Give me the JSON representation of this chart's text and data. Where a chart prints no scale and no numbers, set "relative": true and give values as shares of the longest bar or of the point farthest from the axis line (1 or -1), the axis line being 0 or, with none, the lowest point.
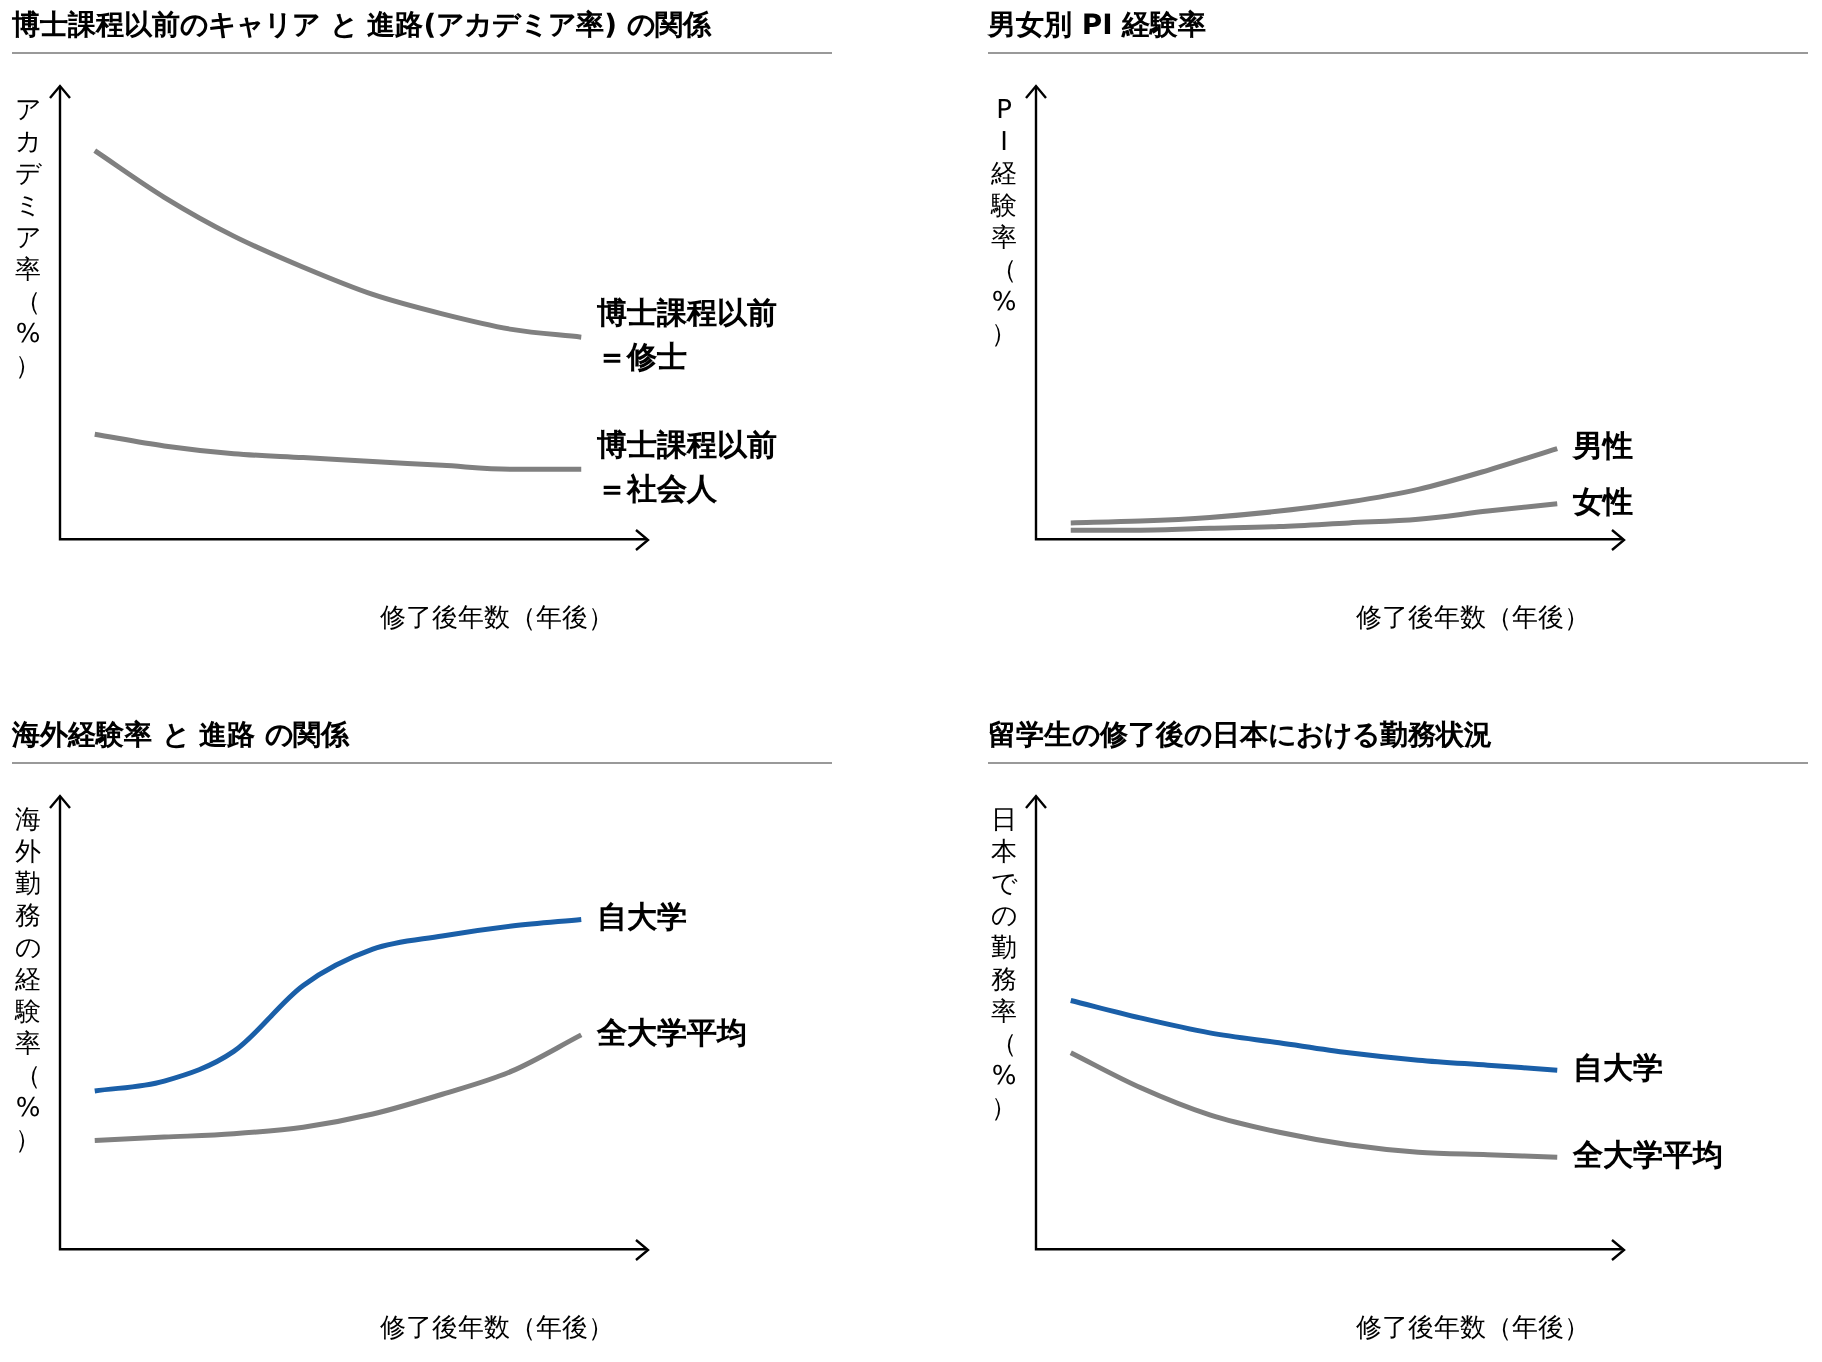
{
  "chart_data": [
    {
      "type": "line",
      "title": "博士課程以前のキャリア と 進路(アカデミア率) の関係",
      "xlabel": "修了後年数（年後）",
      "ylabel": "アカデミア率（%）",
      "relative": true,
      "legend": false,
      "grid": false,
      "marker": "none",
      "categories": [
        null,
        null,
        null,
        null,
        null,
        null,
        null,
        null
      ],
      "series": [
        {
          "name": "博士課程以前＝修士",
          "color": "#808080",
          "values": [
            1,
            0.88,
            0.78,
            0.7,
            0.63,
            0.58,
            0.54,
            0.52
          ]
        },
        {
          "name": "博士課程以前＝社会人",
          "color": "#808080",
          "values": [
            0.27,
            0.24,
            0.22,
            0.21,
            0.2,
            0.19,
            0.18,
            0.18
          ]
        }
      ]
    },
    {
      "type": "line",
      "title": "男女別 PI 経験率",
      "xlabel": "修了後年数（年後）",
      "ylabel": "PI経験率（%）",
      "relative": true,
      "legend": false,
      "grid": false,
      "marker": "none",
      "categories": [
        null,
        null,
        null,
        null,
        null,
        null,
        null,
        null
      ],
      "series": [
        {
          "name": "男性",
          "color": "#808080",
          "values": [
            0.18,
            0.2,
            0.24,
            0.31,
            0.41,
            0.55,
            0.76,
            1
          ]
        },
        {
          "name": "女性",
          "color": "#808080",
          "values": [
            0.1,
            0.1,
            0.12,
            0.14,
            0.18,
            0.22,
            0.31,
            0.39
          ]
        }
      ]
    },
    {
      "type": "line",
      "title": "海外経験率 と 進路 の関係",
      "xlabel": "修了後年数（年後）",
      "ylabel": "海外勤務の経験率（%）",
      "relative": true,
      "legend": false,
      "grid": false,
      "marker": "none",
      "categories": [
        null,
        null,
        null,
        null,
        null,
        null,
        null,
        null
      ],
      "series": [
        {
          "name": "自大学",
          "color": "#1a5fa8",
          "values": [
            0.48,
            0.51,
            0.6,
            0.8,
            0.91,
            0.95,
            0.98,
            1
          ]
        },
        {
          "name": "全大学平均",
          "color": "#808080",
          "values": [
            0.33,
            0.34,
            0.35,
            0.37,
            0.41,
            0.47,
            0.54,
            0.65
          ]
        }
      ]
    },
    {
      "type": "line",
      "title": "留学生の修了後の日本における勤務状況",
      "xlabel": "修了後年数（年後）",
      "ylabel": "日本での勤務率（%）",
      "relative": true,
      "legend": false,
      "grid": false,
      "marker": "none",
      "categories": [
        null,
        null,
        null,
        null,
        null,
        null,
        null,
        null
      ],
      "series": [
        {
          "name": "自大学",
          "color": "#1a5fa8",
          "values": [
            1,
            0.93,
            0.87,
            0.83,
            0.79,
            0.76,
            0.74,
            0.72
          ]
        },
        {
          "name": "全大学平均",
          "color": "#808080",
          "values": [
            0.79,
            0.65,
            0.54,
            0.47,
            0.42,
            0.39,
            0.38,
            0.37
          ]
        }
      ]
    }
  ]
}
